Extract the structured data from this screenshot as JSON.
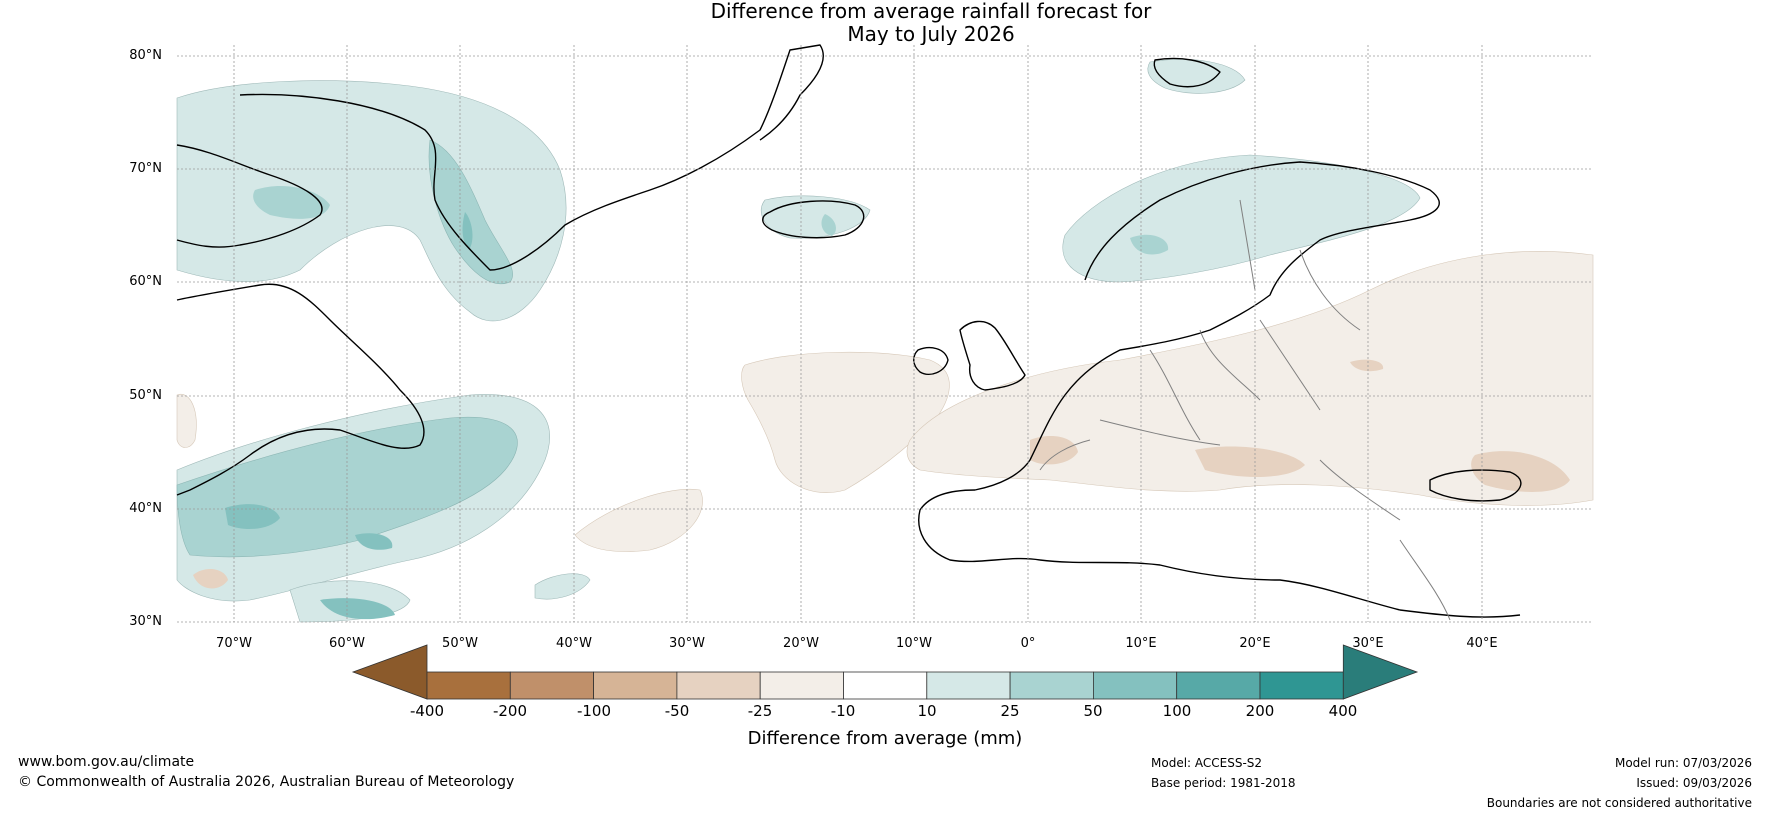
{
  "title": {
    "line1": "Difference from average rainfall forecast for",
    "line2": "May to July 2026"
  },
  "map": {
    "lat_labels": [
      "80°N",
      "70°N",
      "60°N",
      "50°N",
      "40°N",
      "30°N"
    ],
    "lon_labels": [
      "70°W",
      "60°W",
      "50°W",
      "40°W",
      "30°W",
      "20°W",
      "10°W",
      "0°",
      "10°E",
      "20°E",
      "30°E",
      "40°E"
    ],
    "colors": {
      "ocean": "#ffffff",
      "coast": "#000000",
      "borders": "#808080",
      "grid": "#9a9a9a"
    }
  },
  "colorbar": {
    "label": "Difference from average (mm)",
    "ticks": [
      "-400",
      "-200",
      "-100",
      "-50",
      "-25",
      "-10",
      "10",
      "25",
      "50",
      "100",
      "200",
      "400"
    ],
    "colors": [
      "#8b5a2b",
      "#a8703d",
      "#c0906a",
      "#d6b496",
      "#e6d2c1",
      "#f3eee8",
      "#ffffff",
      "#d5e8e7",
      "#a9d3d1",
      "#84c1bf",
      "#57a9a7",
      "#2f9693",
      "#2a7d7a"
    ]
  },
  "footer": {
    "website": "www.bom.gov.au/climate",
    "copyright": "© Commonwealth of Australia 2026, Australian Bureau of Meteorology",
    "model": "Model: ACCESS-S2",
    "base_period": "Base period: 1981-2018",
    "model_run": "Model run: 07/03/2026",
    "issued": "Issued: 09/03/2026",
    "disclaimer": "Boundaries are not considered authoritative"
  }
}
